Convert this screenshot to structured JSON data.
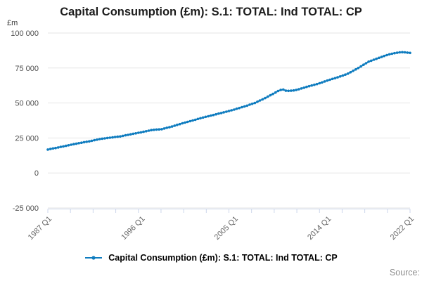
{
  "chart_data": {
    "type": "line",
    "title": "Capital Consumption (£m): S.1: TOTAL: Ind TOTAL: CP",
    "xlabel": "",
    "ylabel": "£m",
    "ylim": [
      -25000,
      100000
    ],
    "yticks": [
      100000,
      75000,
      50000,
      25000,
      0,
      -25000
    ],
    "ytick_labels": [
      "100 000",
      "75 000",
      "50 000",
      "25 000",
      "0",
      "-25 000"
    ],
    "xtick_labels": [
      "1987 Q1",
      "1996 Q1",
      "2005 Q1",
      "2014 Q1",
      "2022 Q1"
    ],
    "xtick_quarter_index": [
      0,
      36,
      72,
      108,
      140
    ],
    "x_start": "1987 Q1",
    "x_end": "2022 Q1",
    "x_frequency": "quarterly",
    "grid": "horizontal",
    "legend_position": "bottom",
    "colors": {
      "line": "#0f7cbf",
      "grid": "#e6e6e6",
      "axis": "#ccd6eb",
      "x_label": "#666666",
      "y_label": "#4d4d4d"
    },
    "series": [
      {
        "name": "Capital Consumption (£m): S.1: TOTAL: Ind TOTAL: CP",
        "marker": "dot",
        "values": [
          16700,
          17100,
          17500,
          17800,
          18200,
          18600,
          19000,
          19400,
          19800,
          20200,
          20600,
          20900,
          21300,
          21600,
          22000,
          22300,
          22600,
          23000,
          23400,
          23800,
          24200,
          24500,
          24700,
          25000,
          25200,
          25400,
          25700,
          25900,
          26100,
          26500,
          26900,
          27200,
          27600,
          28000,
          28300,
          28700,
          29000,
          29400,
          29800,
          30200,
          30600,
          30800,
          31000,
          31100,
          31300,
          31800,
          32300,
          32700,
          33200,
          33800,
          34400,
          34900,
          35500,
          36000,
          36500,
          37000,
          37500,
          38000,
          38600,
          39100,
          39600,
          40100,
          40500,
          41000,
          41400,
          41900,
          42400,
          42800,
          43300,
          43800,
          44300,
          44800,
          45300,
          45900,
          46400,
          47000,
          47500,
          48100,
          48800,
          49400,
          50000,
          50900,
          51800,
          52600,
          53500,
          54500,
          55500,
          56500,
          57500,
          58600,
          59300,
          59600,
          58800,
          58700,
          58800,
          59000,
          59300,
          59800,
          60400,
          60900,
          61500,
          62000,
          62500,
          63000,
          63500,
          64100,
          64700,
          65400,
          66000,
          66600,
          67200,
          67700,
          68300,
          69000,
          69600,
          70300,
          71000,
          72000,
          73000,
          74000,
          75000,
          76100,
          77300,
          78400,
          79500,
          80200,
          80900,
          81600,
          82300,
          82900,
          83600,
          84200,
          84800,
          85200,
          85600,
          85900,
          86200,
          86300,
          86200,
          86000,
          85800
        ]
      }
    ]
  },
  "legend": {
    "label": "Capital Consumption (£m): S.1: TOTAL: Ind TOTAL: CP"
  },
  "footer": {
    "source_label": "Source:"
  }
}
